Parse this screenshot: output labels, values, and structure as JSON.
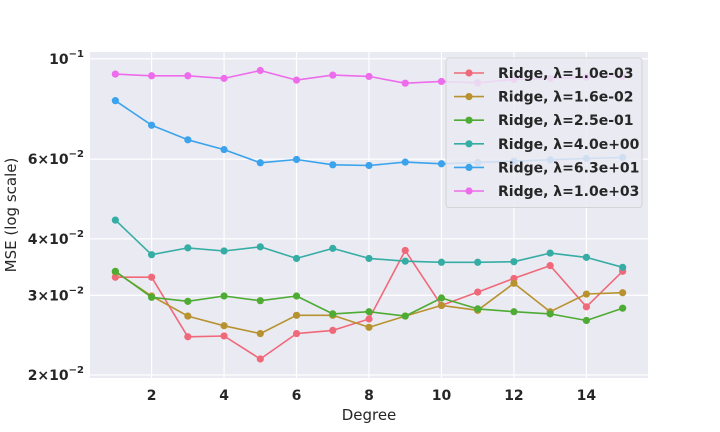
{
  "chart_data": {
    "type": "line",
    "title": "",
    "xlabel": "Degree",
    "ylabel": "MSE (log scale)",
    "yscale": "log",
    "ylim": [
      0.0197,
      0.1035
    ],
    "xlim": [
      0.3,
      15.7
    ],
    "grid": true,
    "legend_position": "top-right",
    "x": [
      1,
      2,
      3,
      4,
      5,
      6,
      7,
      8,
      9,
      10,
      11,
      12,
      13,
      14,
      15
    ],
    "xticks": [
      2,
      4,
      6,
      8,
      10,
      12,
      14
    ],
    "xtick_labels": [
      "2",
      "4",
      "6",
      "8",
      "10",
      "12",
      "14"
    ],
    "yticks": [
      0.02,
      0.03,
      0.04,
      0.06,
      0.1
    ],
    "ytick_labels": [
      {
        "base": "2×10",
        "exp": "−2"
      },
      {
        "base": "3×10",
        "exp": "−2"
      },
      {
        "base": "4×10",
        "exp": "−2"
      },
      {
        "base": "6×10",
        "exp": "−2"
      },
      {
        "base": "10",
        "exp": "−1"
      }
    ],
    "series": [
      {
        "name": "Ridge, λ=1.0e-03",
        "color": "#f0697a",
        "values": [
          0.0329,
          0.0329,
          0.0243,
          0.0244,
          0.0217,
          0.0247,
          0.0251,
          0.0266,
          0.0377,
          0.0285,
          0.0305,
          0.0327,
          0.0349,
          0.0283,
          0.0339
        ]
      },
      {
        "name": "Ridge, λ=1.6e-02",
        "color": "#b8922e",
        "values": [
          0.0338,
          0.0299,
          0.027,
          0.0257,
          0.0247,
          0.0271,
          0.0271,
          0.0255,
          0.027,
          0.0285,
          0.0278,
          0.0319,
          0.0276,
          0.0302,
          0.0304
        ]
      },
      {
        "name": "Ridge, λ=2.5e-01",
        "color": "#4eab33",
        "values": [
          0.0339,
          0.0297,
          0.0291,
          0.0299,
          0.0292,
          0.0299,
          0.0273,
          0.0276,
          0.027,
          0.0296,
          0.028,
          0.0276,
          0.0273,
          0.0264,
          0.0281
        ]
      },
      {
        "name": "Ridge, λ=4.0e+00",
        "color": "#36ada4",
        "values": [
          0.044,
          0.0369,
          0.0382,
          0.0376,
          0.0384,
          0.0362,
          0.0381,
          0.0362,
          0.0357,
          0.0355,
          0.0355,
          0.0356,
          0.0372,
          0.0364,
          0.0346
        ]
      },
      {
        "name": "Ridge, λ=6.3e+01",
        "color": "#3ba3ec",
        "values": [
          0.0808,
          0.0713,
          0.0662,
          0.063,
          0.0589,
          0.0599,
          0.0583,
          0.0581,
          0.0591,
          0.0586,
          0.059,
          0.0594,
          0.0598,
          0.0602,
          0.0605
        ]
      },
      {
        "name": "Ridge, λ=1.0e+03",
        "color": "#ed6ceb",
        "values": [
          0.0925,
          0.0917,
          0.0917,
          0.0905,
          0.0942,
          0.0897,
          0.092,
          0.0914,
          0.0883,
          0.0891,
          0.0885,
          0.09,
          0.0905,
          0.091,
          0.0915
        ]
      }
    ]
  }
}
